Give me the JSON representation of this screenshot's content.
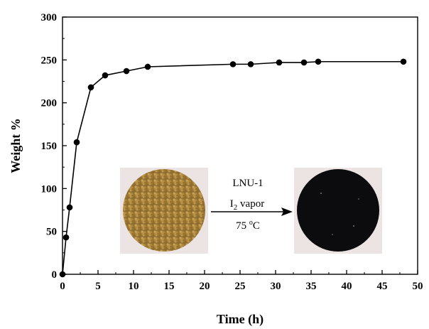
{
  "chart_data": {
    "type": "line",
    "xlabel": "Time (h)",
    "ylabel": "Weight %",
    "xlim": [
      0,
      50
    ],
    "ylim": [
      0,
      300
    ],
    "xticks": [
      "0",
      "5",
      "10",
      "15",
      "20",
      "25",
      "30",
      "35",
      "40",
      "45",
      "50"
    ],
    "yticks": [
      "0",
      "50",
      "100",
      "150",
      "200",
      "250",
      "300"
    ],
    "grid": false,
    "series": [
      {
        "x": [
          0,
          0.5,
          1,
          2,
          4,
          6,
          9,
          12,
          24,
          26.5,
          30.5,
          34,
          36,
          48
        ],
        "y": [
          0,
          43,
          78,
          154,
          218,
          232,
          237,
          242,
          245,
          245,
          247,
          247,
          248,
          248
        ]
      }
    ],
    "annotations": {
      "line1": "LNU-1",
      "line2_main": "I",
      "line2_sub": "2",
      "line2_rest": " vapor",
      "line3_main": "75 ",
      "line3_sup": "o",
      "line3_rest": "C"
    },
    "colors": {
      "line": "#000000",
      "marker": "#000000",
      "before_sample": "#b08a3c",
      "after_sample": "#0c0c0e",
      "inset_bg": "#ece4e3"
    }
  }
}
